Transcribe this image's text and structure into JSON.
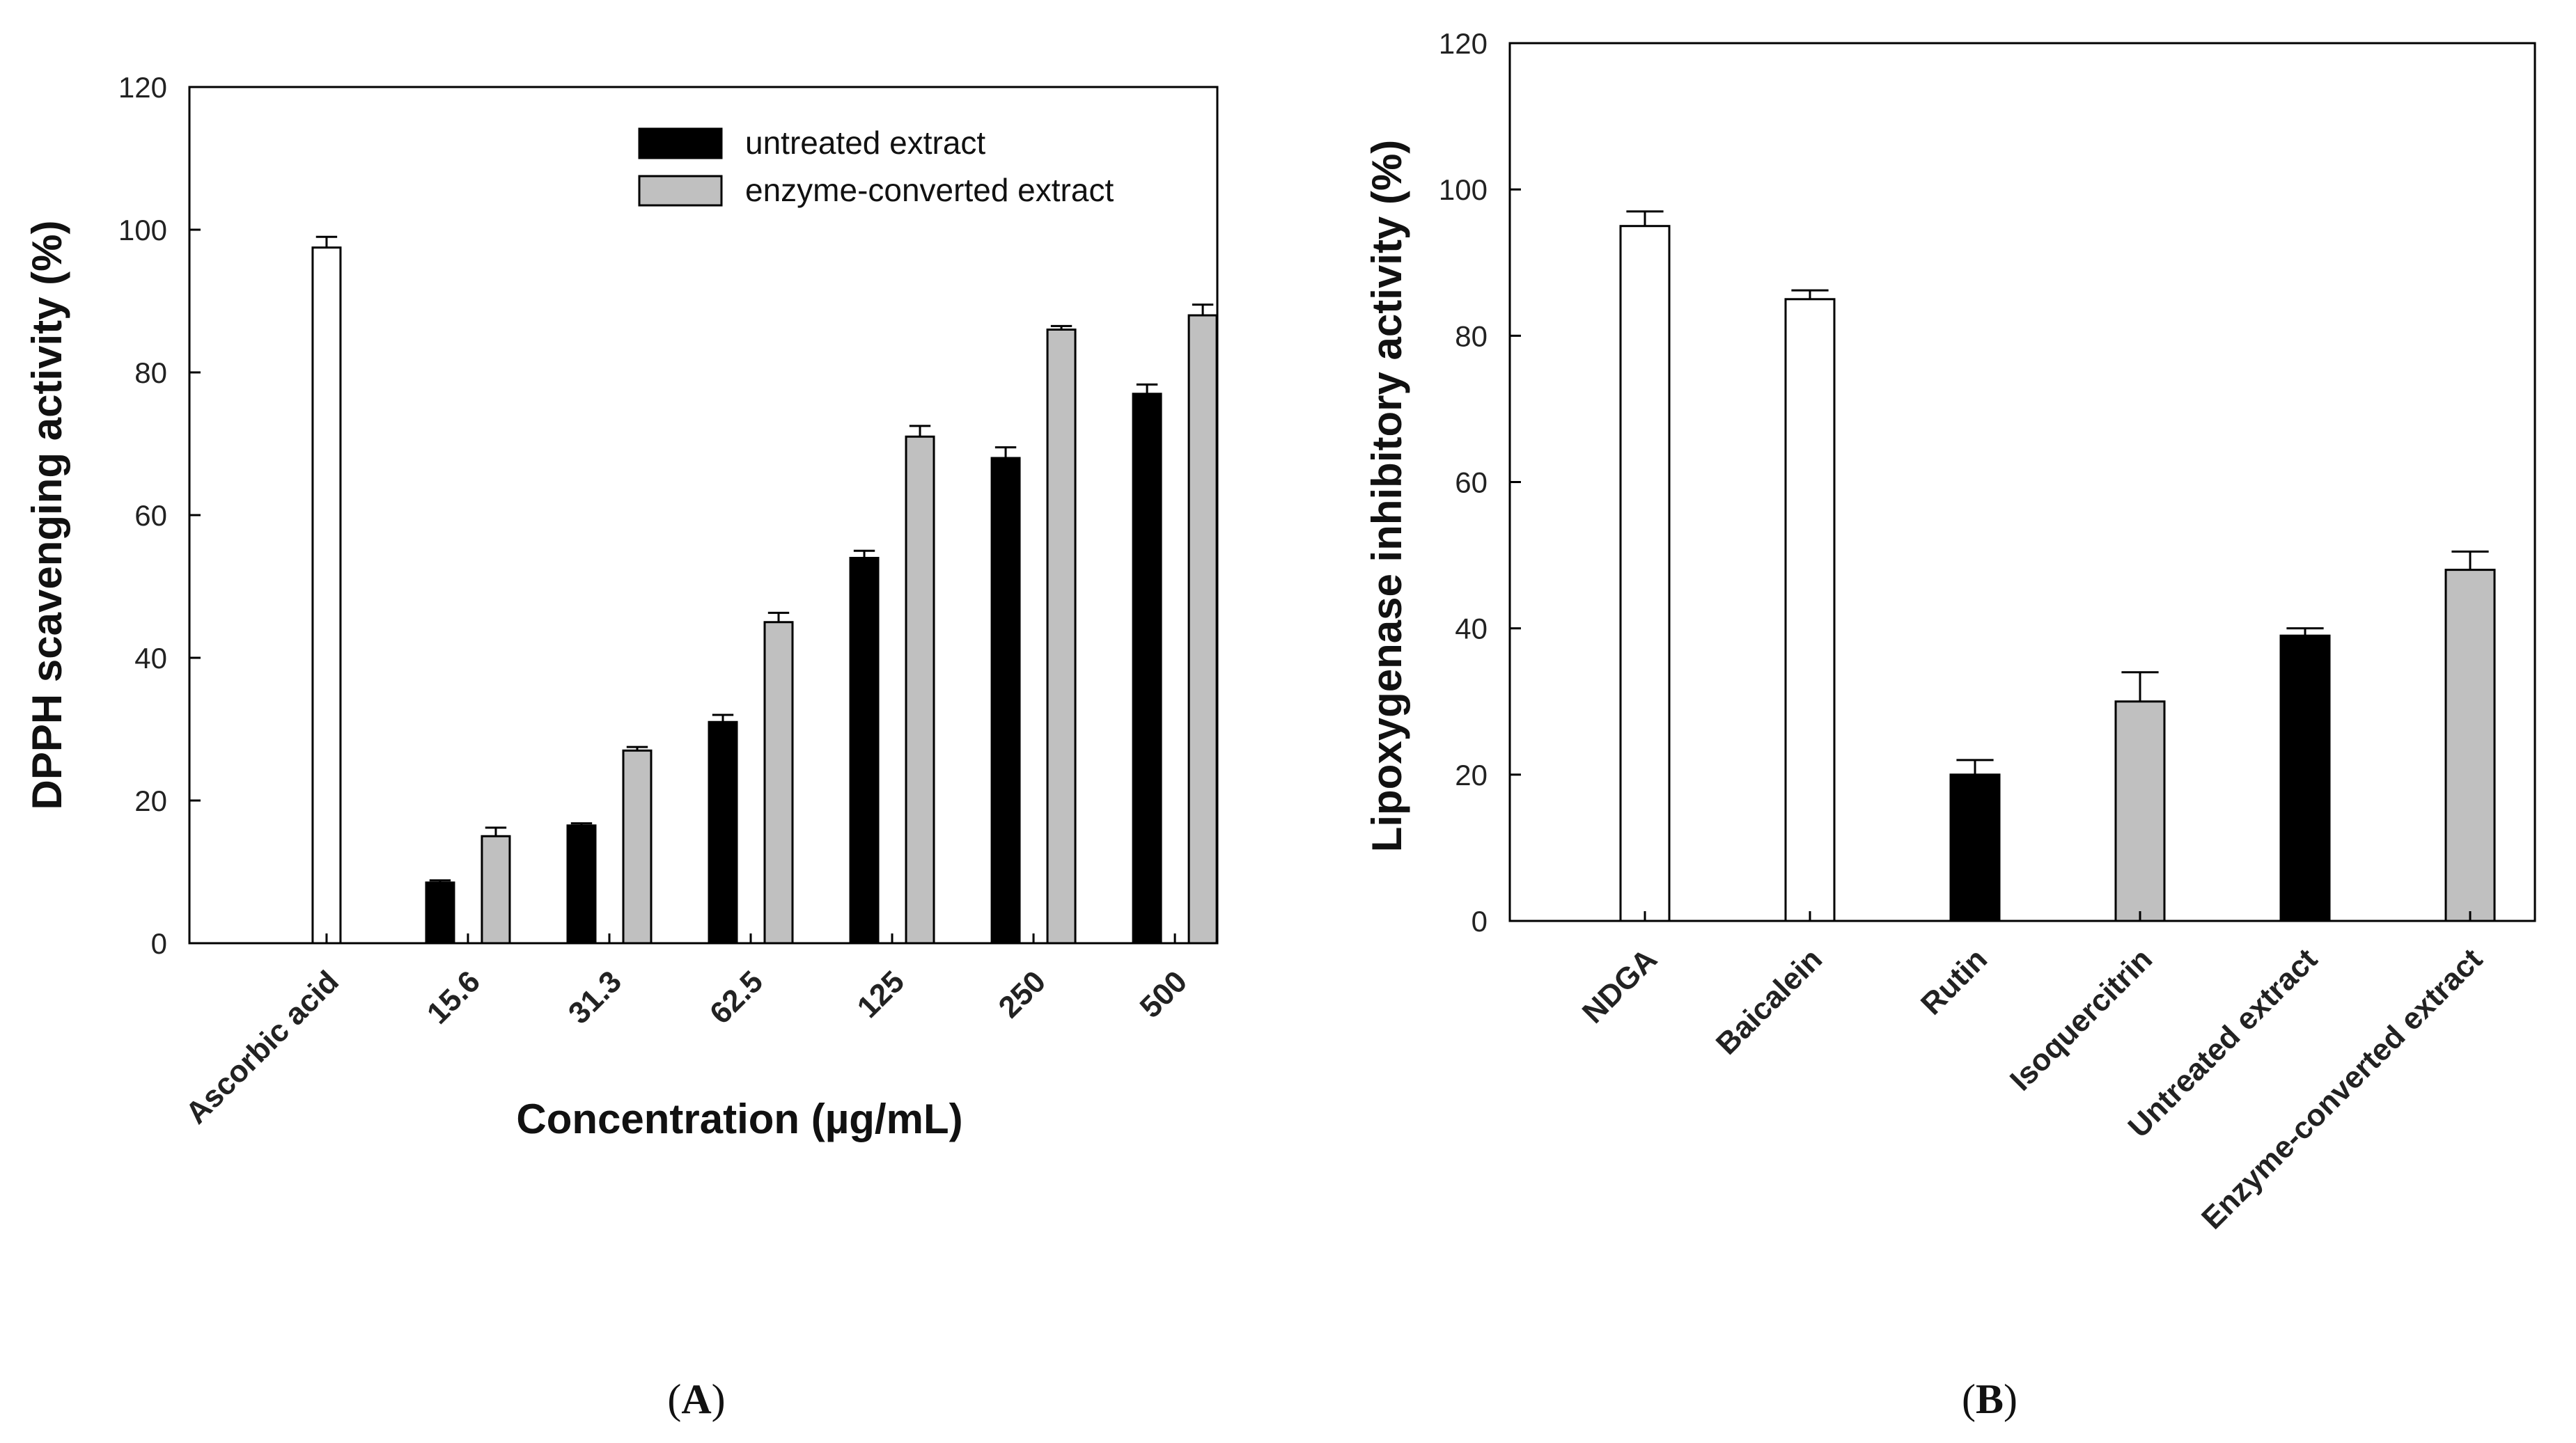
{
  "chart_data": [
    {
      "panel": "A",
      "type": "bar",
      "title": "",
      "xlabel": "Concentration (µg/mL)",
      "ylabel": "DPPH scavenging activity (%)",
      "ylim": [
        0,
        120
      ],
      "yticks": [
        0,
        20,
        40,
        60,
        80,
        100,
        120
      ],
      "grid": false,
      "legend_position": "top-right",
      "categories": [
        "Ascorbic acid",
        "15.6",
        "31.3",
        "62.5",
        "125",
        "250",
        "500"
      ],
      "series": [
        {
          "name": "Ascorbic acid",
          "color": "#ffffff",
          "values": [
            97.5,
            null,
            null,
            null,
            null,
            null,
            null
          ],
          "errors": [
            1.5,
            null,
            null,
            null,
            null,
            null,
            null
          ]
        },
        {
          "name": "untreated extract",
          "color": "#000000",
          "values": [
            null,
            8.5,
            16.5,
            31,
            54,
            68,
            77
          ],
          "errors": [
            null,
            0.3,
            0.3,
            1,
            1,
            1.5,
            1.3
          ]
        },
        {
          "name": "enzyme-converted extract",
          "color": "#c0c0c0",
          "values": [
            null,
            15,
            27,
            45,
            71,
            86,
            88
          ],
          "errors": [
            null,
            1.2,
            0.5,
            1.3,
            1.5,
            0.5,
            1.5
          ]
        }
      ],
      "legend": [
        "untreated extract",
        "enzyme-converted extract"
      ]
    },
    {
      "panel": "B",
      "type": "bar",
      "title": "",
      "xlabel": "",
      "ylabel": "Lipoxygenase inhibitory activity (%)",
      "ylim": [
        0,
        120
      ],
      "yticks": [
        0,
        20,
        40,
        60,
        80,
        100,
        120
      ],
      "grid": false,
      "categories": [
        "NDGA",
        "Baicalein",
        "Rutin",
        "Isoquercitrin",
        "Untreated extract",
        "Enzyme-converted extract"
      ],
      "values": [
        95,
        85,
        20,
        30,
        39,
        48
      ],
      "errors": [
        2,
        1.2,
        2,
        4,
        1,
        2.5
      ],
      "colors": [
        "#ffffff",
        "#ffffff",
        "#000000",
        "#c0c0c0",
        "#000000",
        "#c0c0c0"
      ]
    }
  ],
  "panel_labels": [
    {
      "open": "(",
      "letter": "A",
      "close": ")"
    },
    {
      "open": "(",
      "letter": "B",
      "close": ")"
    }
  ]
}
